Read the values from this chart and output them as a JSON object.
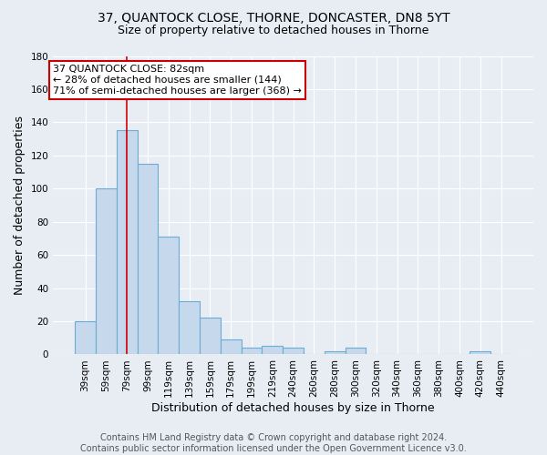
{
  "title": "37, QUANTOCK CLOSE, THORNE, DONCASTER, DN8 5YT",
  "subtitle": "Size of property relative to detached houses in Thorne",
  "xlabel": "Distribution of detached houses by size in Thorne",
  "ylabel": "Number of detached properties",
  "bar_labels": [
    "39sqm",
    "59sqm",
    "79sqm",
    "99sqm",
    "119sqm",
    "139sqm",
    "159sqm",
    "179sqm",
    "199sqm",
    "219sqm",
    "240sqm",
    "260sqm",
    "280sqm",
    "300sqm",
    "320sqm",
    "340sqm",
    "360sqm",
    "380sqm",
    "400sqm",
    "420sqm",
    "440sqm"
  ],
  "bar_values": [
    20,
    100,
    135,
    115,
    71,
    32,
    22,
    9,
    4,
    5,
    4,
    0,
    2,
    4,
    0,
    0,
    0,
    0,
    0,
    2,
    0
  ],
  "bar_color": "#c5d8ec",
  "bar_edge_color": "#6aacd6",
  "ylim": [
    0,
    180
  ],
  "yticks": [
    0,
    20,
    40,
    60,
    80,
    100,
    120,
    140,
    160,
    180
  ],
  "vline_x": 2,
  "vline_color": "#cc0000",
  "annotation_text": "37 QUANTOCK CLOSE: 82sqm\n← 28% of detached houses are smaller (144)\n71% of semi-detached houses are larger (368) →",
  "annotation_box_color": "#ffffff",
  "annotation_box_edge": "#cc0000",
  "footer": "Contains HM Land Registry data © Crown copyright and database right 2024.\nContains public sector information licensed under the Open Government Licence v3.0.",
  "background_color": "#e8edf4",
  "title_fontsize": 10,
  "subtitle_fontsize": 9,
  "tick_fontsize": 7.5,
  "ylabel_fontsize": 9,
  "xlabel_fontsize": 9,
  "footer_fontsize": 7
}
